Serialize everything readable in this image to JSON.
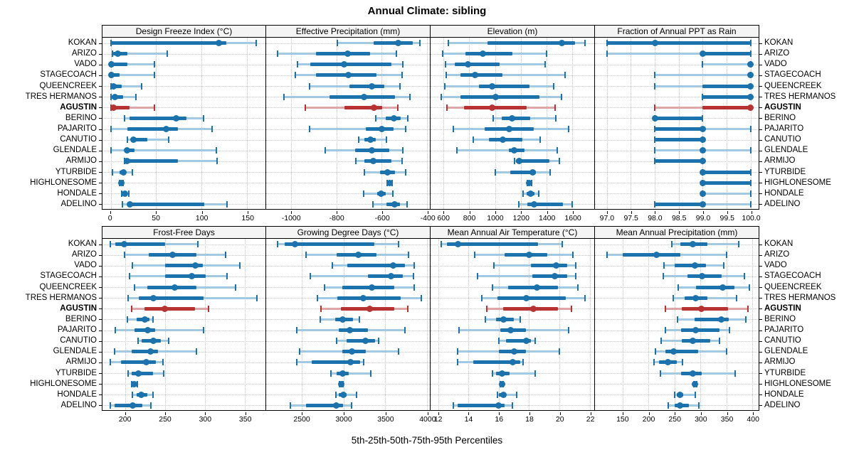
{
  "title": "Annual Climate: sibling",
  "footer_xlabel": "5th-25th-50th-75th-95th Percentiles",
  "highlight_site": "AGUSTIN",
  "colors": {
    "series_blue": "#1b72ad",
    "series_blue_light": "#a3c8e2",
    "highlight_red": "#b73333",
    "highlight_red_light": "#dca6a6",
    "strip_bg": "#f4f4f4",
    "grid": "#c6c6c6",
    "panel_border": "#000000"
  },
  "chart_data": {
    "type": "dotplot-percentiles",
    "percentile_labels": [
      "5th",
      "25th",
      "50th",
      "75th",
      "95th"
    ],
    "legend_note": "5th-25th-50th-75th-95th Percentiles",
    "grid": "dotted",
    "sites": [
      "KOKAN",
      "ARIZO",
      "VADO",
      "STAGECOACH",
      "QUEENCREEK",
      "TRES HERMANOS",
      "AGUSTIN",
      "BERINO",
      "PAJARITO",
      "CANUTIO",
      "GLENDALE",
      "ARMIJO",
      "YTURBIDE",
      "HIGHLONESOME",
      "HONDALE",
      "ADELINO"
    ],
    "panels": [
      {
        "title": "Design Freeze Index (°C)",
        "row": 0,
        "domain": [
          -9,
          170
        ],
        "ticks": [
          0,
          50,
          100,
          150
        ],
        "tick_labels": [
          "0",
          "50",
          "100",
          "150"
        ],
        "values": [
          [
            0,
            0,
            119,
            127,
            160
          ],
          [
            2,
            3,
            8,
            18,
            62
          ],
          [
            0,
            0,
            1,
            18,
            48
          ],
          [
            0,
            0,
            1,
            10,
            48
          ],
          [
            0,
            1,
            3,
            12,
            34
          ],
          [
            0,
            1,
            5,
            14,
            28
          ],
          [
            0,
            1,
            3,
            21,
            48
          ],
          [
            15,
            21,
            72,
            83,
            102
          ],
          [
            0,
            18,
            61,
            74,
            111
          ],
          [
            18,
            22,
            25,
            40,
            64
          ],
          [
            0,
            15,
            18,
            26,
            116
          ],
          [
            15,
            17,
            18,
            74,
            117
          ],
          [
            2,
            10,
            14,
            17,
            24
          ],
          [
            10,
            11,
            12,
            13,
            14
          ],
          [
            12,
            14,
            16,
            18,
            20
          ],
          [
            13,
            18,
            21,
            103,
            128
          ]
        ]
      },
      {
        "title": "Effective Precipitation (mm)",
        "row": 0,
        "domain": [
          -1110,
          -388
        ],
        "ticks": [
          -1000,
          -800,
          -600,
          -400
        ],
        "tick_labels": [
          "-1000",
          "-800",
          "-600",
          "-400"
        ],
        "values": [
          [
            -795,
            -635,
            -527,
            -464,
            -433
          ],
          [
            -1060,
            -890,
            -752,
            -651,
            -537
          ],
          [
            -972,
            -915,
            -767,
            -558,
            -508
          ],
          [
            -980,
            -889,
            -749,
            -622,
            -511
          ],
          [
            -918,
            -744,
            -643,
            -589,
            -521
          ],
          [
            -1031,
            -832,
            -677,
            -542,
            -475
          ],
          [
            -938,
            -765,
            -635,
            -599,
            -529
          ],
          [
            -628,
            -583,
            -547,
            -516,
            -485
          ],
          [
            -920,
            -672,
            -601,
            -547,
            -495
          ],
          [
            -703,
            -677,
            -651,
            -625,
            -578
          ],
          [
            -848,
            -718,
            -643,
            -568,
            -508
          ],
          [
            -715,
            -677,
            -638,
            -558,
            -511
          ],
          [
            -677,
            -609,
            -575,
            -542,
            -495
          ],
          [
            -576,
            -571,
            -566,
            -560,
            -555
          ],
          [
            -680,
            -619,
            -602,
            -583,
            -552
          ],
          [
            -638,
            -578,
            -544,
            -521,
            -487
          ]
        ]
      },
      {
        "title": "Elevation (m)",
        "row": 0,
        "domain": [
          500,
          1770
        ],
        "ticks": [
          600,
          800,
          1000,
          1200,
          1400,
          1600
        ],
        "tick_labels": [
          "600",
          "800",
          "1000",
          "1200",
          "1400",
          "1600"
        ],
        "values": [
          [
            640,
            940,
            1517,
            1620,
            1700
          ],
          [
            593,
            770,
            904,
            1137,
            1398
          ],
          [
            615,
            688,
            789,
            1036,
            1387
          ],
          [
            624,
            730,
            844,
            1060,
            1545
          ],
          [
            611,
            877,
            977,
            1265,
            1453
          ],
          [
            582,
            734,
            1003,
            1347,
            1518
          ],
          [
            627,
            761,
            977,
            1247,
            1466
          ],
          [
            985,
            1054,
            1133,
            1274,
            1472
          ],
          [
            675,
            922,
            1109,
            1301,
            1571
          ],
          [
            834,
            953,
            1060,
            1215,
            1351
          ],
          [
            703,
            1109,
            1149,
            1228,
            1485
          ],
          [
            1149,
            1164,
            1188,
            1421,
            1499
          ],
          [
            1003,
            1118,
            1292,
            1316,
            1426
          ],
          [
            1250,
            1258,
            1265,
            1273,
            1283
          ],
          [
            1219,
            1247,
            1274,
            1305,
            1338
          ],
          [
            1186,
            1252,
            1301,
            1527,
            1600
          ]
        ]
      },
      {
        "title": "Fraction of Annual PPT as Rain",
        "row": 0,
        "domain": [
          96.75,
          100.17
        ],
        "ticks": [
          97.0,
          97.5,
          98.0,
          98.5,
          99.0,
          99.5,
          100.0
        ],
        "tick_labels": [
          "97.0",
          "97.5",
          "98.0",
          "98.5",
          "99.0",
          "99.5",
          "100.0"
        ],
        "values": [
          [
            97,
            97,
            98,
            100,
            100
          ],
          [
            97,
            99,
            99,
            100,
            100
          ],
          [
            99,
            100,
            100,
            100,
            100
          ],
          [
            98,
            100,
            100,
            100,
            100
          ],
          [
            98,
            99,
            100,
            100,
            100
          ],
          [
            99,
            99,
            100,
            100,
            100
          ],
          [
            98,
            99,
            100,
            100,
            100
          ],
          [
            98,
            98,
            98,
            99,
            99
          ],
          [
            98,
            98,
            99,
            99,
            100
          ],
          [
            98,
            98,
            99,
            99,
            99
          ],
          [
            98,
            99,
            99,
            99,
            100
          ],
          [
            98,
            98,
            99,
            99,
            99
          ],
          [
            99,
            99,
            99,
            100,
            100
          ],
          [
            99,
            99,
            99,
            100,
            100
          ],
          [
            99,
            99,
            99,
            99,
            100
          ],
          [
            98,
            98,
            99,
            99,
            100
          ]
        ]
      },
      {
        "title": "Frost-Free Days",
        "row": 1,
        "domain": [
          171,
          376
        ],
        "ticks": [
          200,
          250,
          300,
          350
        ],
        "tick_labels": [
          "200",
          "250",
          "300",
          "350"
        ],
        "values": [
          [
            181,
            187,
            198,
            250,
            291
          ],
          [
            199,
            229,
            259,
            289,
            326
          ],
          [
            209,
            250,
            288,
            297,
            344
          ],
          [
            205,
            250,
            283,
            301,
            328
          ],
          [
            211,
            227,
            262,
            289,
            338
          ],
          [
            203,
            217,
            235,
            298,
            365
          ],
          [
            208,
            224,
            249,
            287,
            304
          ],
          [
            202,
            214,
            224,
            230,
            235
          ],
          [
            187,
            211,
            228,
            237,
            298
          ],
          [
            216,
            220,
            235,
            244,
            254
          ],
          [
            186,
            208,
            231,
            241,
            289
          ],
          [
            181,
            194,
            226,
            238,
            247
          ],
          [
            203,
            208,
            216,
            235,
            248
          ],
          [
            208,
            210,
            211,
            213,
            215
          ],
          [
            209,
            214,
            220,
            227,
            235
          ],
          [
            181,
            186,
            209,
            221,
            232
          ]
        ]
      },
      {
        "title": "Growing Degree Days (°C)",
        "row": 1,
        "domain": [
          2075,
          4035
        ],
        "ticks": [
          2500,
          3000,
          3500,
          4000
        ],
        "tick_labels": [
          "2500",
          "3000",
          "3500",
          "4000"
        ],
        "values": [
          [
            2210,
            2300,
            2420,
            3370,
            3660
          ],
          [
            2548,
            2915,
            3178,
            3396,
            3777
          ],
          [
            2867,
            3050,
            3593,
            3734,
            3847
          ],
          [
            2605,
            3297,
            3573,
            3715,
            3839
          ],
          [
            2774,
            2986,
            3339,
            3607,
            3847
          ],
          [
            2689,
            2929,
            3234,
            3686,
            3932
          ],
          [
            2732,
            2972,
            3316,
            3607,
            3771
          ],
          [
            2726,
            2901,
            2992,
            3113,
            3192
          ],
          [
            2444,
            2944,
            3076,
            3291,
            3734
          ],
          [
            2915,
            3042,
            3268,
            3380,
            3420
          ],
          [
            2477,
            2986,
            3105,
            3268,
            3658
          ],
          [
            2444,
            2624,
            3085,
            3200,
            3240
          ],
          [
            2850,
            2915,
            2992,
            3065,
            3325
          ],
          [
            2952,
            2962,
            2972,
            2982,
            2992
          ],
          [
            2910,
            2944,
            3000,
            3042,
            3161
          ],
          [
            2364,
            2548,
            2915,
            2992,
            3099
          ]
        ]
      },
      {
        "title": "Mean Annual Air Temperature (°C)",
        "row": 1,
        "domain": [
          11.5,
          22.3
        ],
        "ticks": [
          12,
          14,
          16,
          18,
          20,
          22
        ],
        "tick_labels": [
          "12",
          "14",
          "16",
          "18",
          "20",
          "22"
        ],
        "values": [
          [
            12.2,
            12.6,
            13.3,
            18.6,
            20.2
          ],
          [
            14.4,
            16.4,
            18.0,
            19.2,
            20.9
          ],
          [
            15.7,
            18.1,
            19.8,
            20.5,
            21.1
          ],
          [
            14.6,
            18.2,
            19.7,
            20.5,
            21.1
          ],
          [
            15.6,
            16.6,
            18.5,
            19.9,
            21.2
          ],
          [
            14.9,
            15.9,
            17.8,
            20.4,
            21.7
          ],
          [
            15.2,
            16.3,
            18.3,
            19.9,
            20.8
          ],
          [
            15.1,
            15.8,
            16.3,
            17.0,
            17.4
          ],
          [
            13.4,
            16.1,
            16.8,
            17.8,
            20.6
          ],
          [
            16.0,
            16.5,
            17.8,
            18.1,
            18.4
          ],
          [
            13.3,
            16.0,
            17.0,
            17.8,
            20.0
          ],
          [
            13.3,
            14.3,
            16.9,
            17.4,
            17.6
          ],
          [
            15.6,
            15.8,
            16.2,
            16.7,
            18.4
          ],
          [
            16.1,
            16.15,
            16.2,
            16.25,
            16.3
          ],
          [
            15.9,
            16.0,
            16.3,
            16.5,
            17.2
          ],
          [
            13.0,
            13.3,
            16.0,
            16.4,
            16.9
          ]
        ]
      },
      {
        "title": "Mean Annual Precipitation (mm)",
        "row": 1,
        "domain": [
          97,
          412
        ],
        "ticks": [
          150,
          200,
          250,
          300,
          350,
          400
        ],
        "tick_labels": [
          "150",
          "200",
          "250",
          "300",
          "350",
          "400"
        ],
        "values": [
          [
            245,
            262,
            285,
            314,
            373
          ],
          [
            120,
            151,
            215,
            262,
            350
          ],
          [
            230,
            251,
            290,
            311,
            345
          ],
          [
            228,
            275,
            303,
            341,
            384
          ],
          [
            257,
            291,
            343,
            366,
            394
          ],
          [
            247,
            270,
            291,
            313,
            369
          ],
          [
            233,
            264,
            302,
            353,
            392
          ],
          [
            256,
            289,
            340,
            355,
            387
          ],
          [
            233,
            263,
            291,
            336,
            356
          ],
          [
            224,
            264,
            285,
            319,
            336
          ],
          [
            214,
            233,
            248,
            296,
            351
          ],
          [
            210,
            220,
            237,
            255,
            266
          ],
          [
            223,
            263,
            285,
            303,
            367
          ],
          [
            287,
            288,
            290,
            292,
            293
          ],
          [
            251,
            254,
            261,
            267,
            290
          ],
          [
            238,
            251,
            261,
            278,
            297
          ]
        ]
      }
    ]
  }
}
